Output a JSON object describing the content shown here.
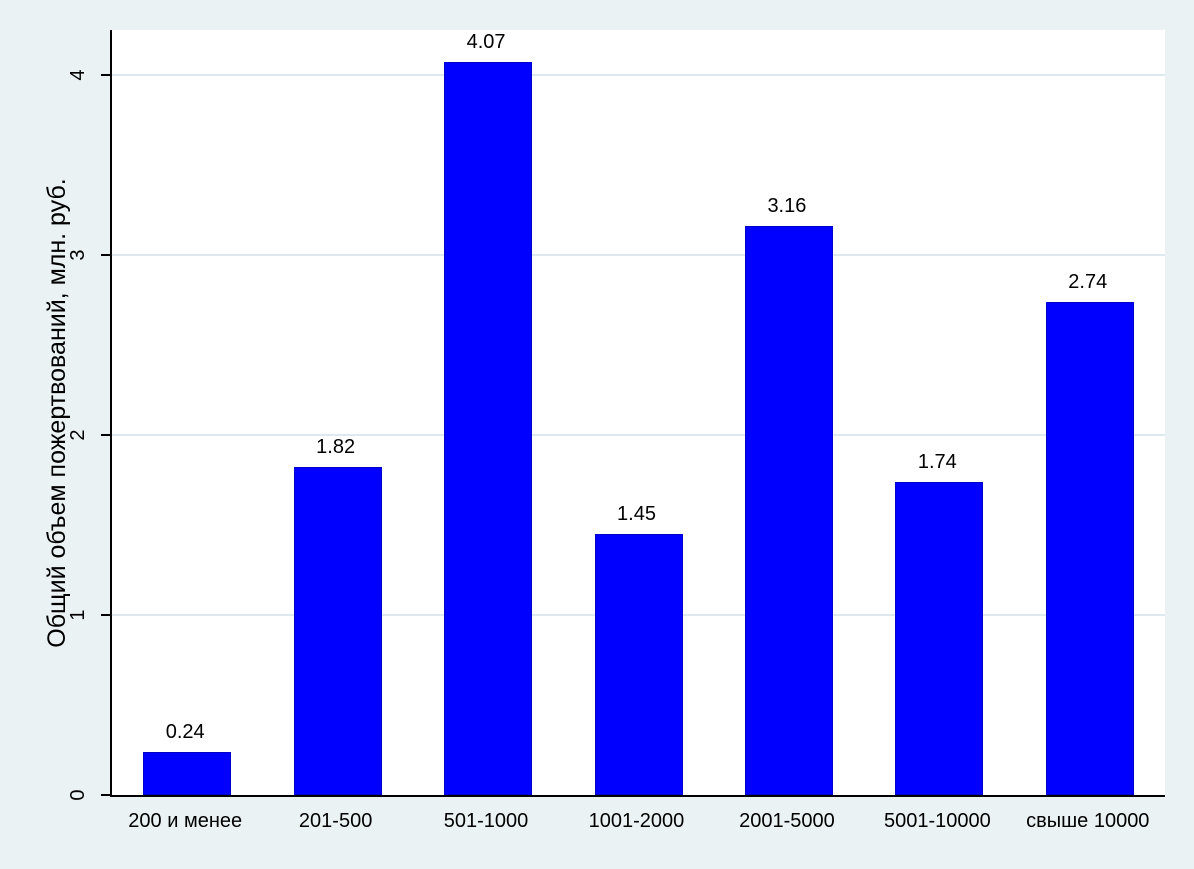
{
  "figure": {
    "background": "#eaf2f3",
    "plot_background": "#ffffff",
    "axis_color": "#000000",
    "grid_color": "#dde9ee"
  },
  "chart_data": {
    "type": "bar",
    "title": "",
    "xlabel": "",
    "ylabel": "Общий объем пожертвований, млн. руб.",
    "categories": [
      "200 и менее",
      "201-500",
      "501-1000",
      "1001-2000",
      "2001-5000",
      "5001-10000",
      "свыше 10000"
    ],
    "values": [
      0.24,
      1.82,
      4.07,
      1.45,
      3.16,
      1.74,
      2.74
    ],
    "value_labels": [
      "0.24",
      "1.82",
      "4.07",
      "1.45",
      "3.16",
      "1.74",
      "2.74"
    ],
    "yticks": [
      0,
      1,
      2,
      3,
      4
    ],
    "ytick_labels": [
      "0",
      "1",
      "2",
      "3",
      "4"
    ],
    "ylim": [
      0,
      4.25
    ],
    "grid": true,
    "legend": "none",
    "bar_color": "#0000ff",
    "bar_border_color": "#0000cc"
  }
}
